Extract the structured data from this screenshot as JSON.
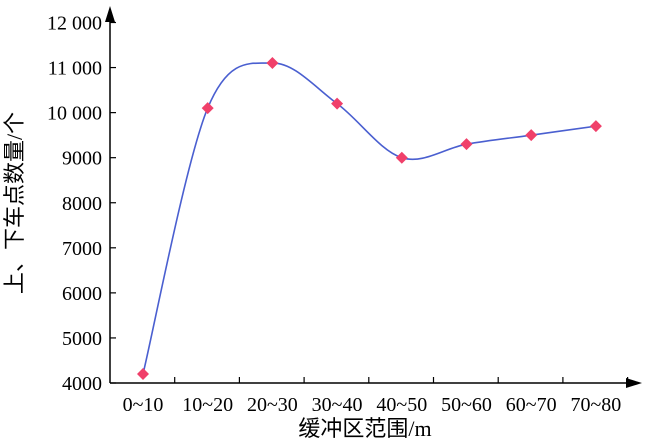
{
  "chart_data": {
    "type": "line",
    "categories": [
      "0~10",
      "10~20",
      "20~30",
      "30~40",
      "40~50",
      "50~60",
      "60~70",
      "70~80"
    ],
    "series": [
      {
        "values": [
          4200,
          10100,
          11100,
          10200,
          9000,
          9300,
          9500,
          9700
        ],
        "color": "#4a5fd0",
        "marker_color": "#f0406a",
        "marker": "diamond"
      }
    ],
    "xlabel": "缓冲区范围/m",
    "ylabel": "上、下车点数量/个",
    "ylim": [
      4000,
      12000
    ],
    "yticks": [
      4000,
      5000,
      6000,
      7000,
      8000,
      9000,
      10000,
      11000,
      12000
    ],
    "ytick_labels": [
      "4000",
      "5000",
      "6000",
      "7000",
      "8000",
      "9000",
      "10 000",
      "11 000",
      "12 000"
    ],
    "grid": false,
    "smooth": true
  }
}
